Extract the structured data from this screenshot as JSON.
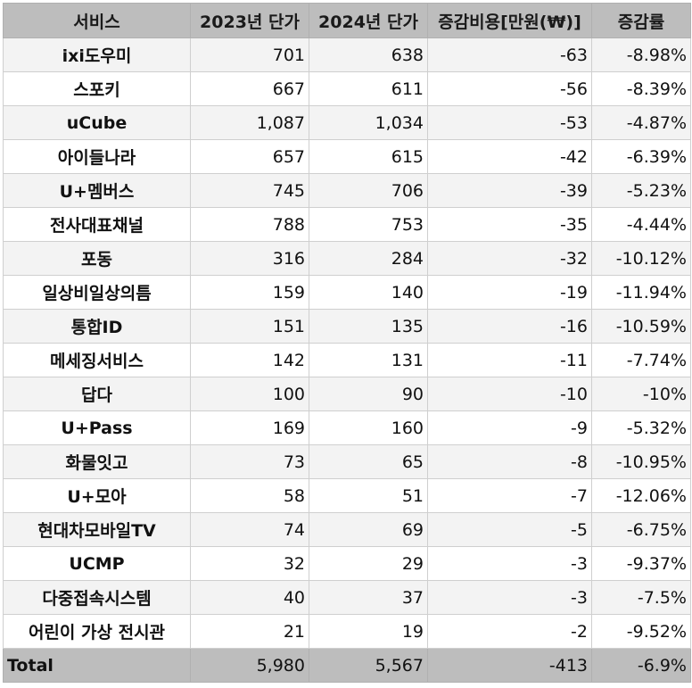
{
  "table": {
    "headers": [
      "서비스",
      "2023년 단가",
      "2024년 단가",
      "증감비용[만원(₩)]",
      "증감률"
    ],
    "rows": [
      [
        "ixi도우미",
        "701",
        "638",
        "-63",
        "-8.98%"
      ],
      [
        "스포키",
        "667",
        "611",
        "-56",
        "-8.39%"
      ],
      [
        "uCube",
        "1,087",
        "1,034",
        "-53",
        "-4.87%"
      ],
      [
        "아이들나라",
        "657",
        "615",
        "-42",
        "-6.39%"
      ],
      [
        "U+멤버스",
        "745",
        "706",
        "-39",
        "-5.23%"
      ],
      [
        "전사대표채널",
        "788",
        "753",
        "-35",
        "-4.44%"
      ],
      [
        "포동",
        "316",
        "284",
        "-32",
        "-10.12%"
      ],
      [
        "일상비일상의틈",
        "159",
        "140",
        "-19",
        "-11.94%"
      ],
      [
        "통합ID",
        "151",
        "135",
        "-16",
        "-10.59%"
      ],
      [
        "메세징서비스",
        "142",
        "131",
        "-11",
        "-7.74%"
      ],
      [
        "답다",
        "100",
        "90",
        "-10",
        "-10%"
      ],
      [
        "U+Pass",
        "169",
        "160",
        "-9",
        "-5.32%"
      ],
      [
        "화물잇고",
        "73",
        "65",
        "-8",
        "-10.95%"
      ],
      [
        "U+모아",
        "58",
        "51",
        "-7",
        "-12.06%"
      ],
      [
        "현대차모바일TV",
        "74",
        "69",
        "-5",
        "-6.75%"
      ],
      [
        "UCMP",
        "32",
        "29",
        "-3",
        "-9.37%"
      ],
      [
        "다중접속시스템",
        "40",
        "37",
        "-3",
        "-7.5%"
      ],
      [
        "어린이 가상 전시관",
        "21",
        "19",
        "-2",
        "-9.52%"
      ]
    ],
    "total": [
      "Total",
      "5,980",
      "5,567",
      "-413",
      "-6.9%"
    ]
  }
}
